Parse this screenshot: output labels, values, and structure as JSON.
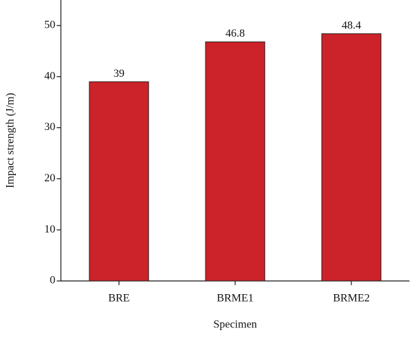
{
  "chart_data": {
    "type": "bar",
    "xlabel": "Specimen",
    "ylabel": "Impact strength (J/m)",
    "categories": [
      "BRE",
      "BRME1",
      "BRME2"
    ],
    "values": [
      39,
      46.8,
      48.4
    ],
    "color": "#cc2229",
    "ylim": [
      0,
      55
    ],
    "yticks": [
      0,
      10,
      20,
      30,
      40,
      50
    ]
  }
}
